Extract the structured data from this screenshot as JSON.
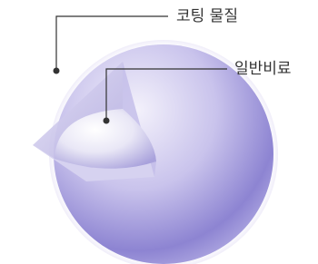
{
  "labels": {
    "coating": "코팅 물질",
    "core": "일반비료"
  }
}
